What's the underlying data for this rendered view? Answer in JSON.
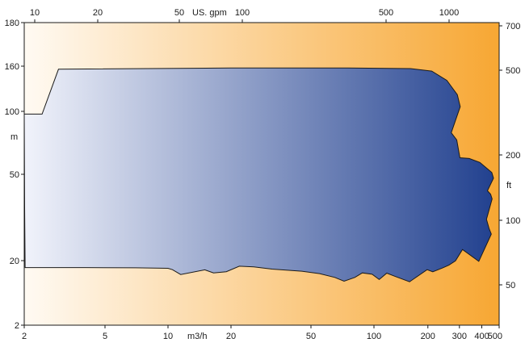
{
  "chart_data": {
    "type": "area",
    "colors": {
      "envelope_light": "#f1f3fb",
      "envelope_dark": "#22418f",
      "background_light": "#fffaf3",
      "background_dark": "#f7a733",
      "outline": "#1a1a1a"
    },
    "bottom_axis": {
      "label": "m3/h",
      "scale": "log",
      "range": [
        2,
        500
      ],
      "ticks": [
        "2",
        "5",
        "10",
        "20",
        "50",
        "100",
        "200",
        "300",
        "400",
        "500"
      ]
    },
    "top_axis": {
      "label": "US. gpm",
      "scale": "log",
      "ticks": [
        "10",
        "20",
        "50",
        "100",
        "500",
        "1000"
      ]
    },
    "left_axis": {
      "label": "m",
      "scale": "log",
      "range": [
        2,
        180
      ],
      "ticks": [
        "2",
        "20",
        "50",
        "100",
        "160",
        "180"
      ]
    },
    "right_axis": {
      "label": "ft",
      "scale": "log",
      "ticks": [
        "50",
        "100",
        "200",
        "500",
        "700"
      ]
    },
    "series": [
      {
        "x": [
          2.0,
          2.45,
          2.95,
          20,
          75,
          160,
          210,
          255,
          292,
          303,
          270,
          290,
          297,
          302,
          340,
          390,
          455,
          465,
          430,
          448,
          457,
          425,
          440,
          452,
          385,
          312,
          285,
          262,
          240,
          213,
          198,
          158,
          130,
          118,
          107,
          98,
          88,
          81,
          72,
          65,
          55,
          45,
          32,
          26,
          22,
          19,
          16.5,
          15,
          11.5,
          10.5,
          10,
          7,
          4,
          2.02,
          2.01,
          2.0
        ],
        "y": [
          97,
          97,
          155,
          157,
          157,
          156,
          152,
          138,
          119,
          105,
          79,
          73,
          65,
          60,
          59.5,
          57,
          51,
          48,
          42,
          40.5,
          38.5,
          31,
          28,
          26.5,
          19.5,
          22.5,
          19.8,
          17,
          15.3,
          13.4,
          14.5,
          9.4,
          11.5,
          12.8,
          10.2,
          12.3,
          12.9,
          11,
          9.6,
          11,
          12.6,
          13.7,
          14.8,
          16,
          16.4,
          13.5,
          12.9,
          14.4,
          12.2,
          14.5,
          15.2,
          15.5,
          15.6,
          15.6,
          35,
          97
        ]
      }
    ]
  }
}
